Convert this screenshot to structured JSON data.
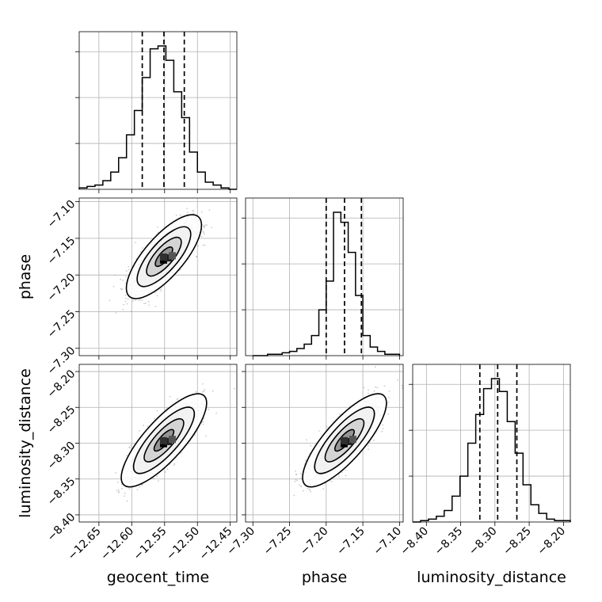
{
  "chart_data": {
    "type": "corner",
    "parameters": [
      {
        "key": "geocent_time",
        "label": "geocent_time",
        "range": [
          -12.68,
          -12.44
        ],
        "ticks": [
          -12.65,
          -12.6,
          -12.55,
          -12.5,
          -12.45
        ],
        "tick_labels": [
          "−12.65",
          "−12.60",
          "−12.55",
          "−12.50",
          "−12.45"
        ],
        "quantiles": [
          -12.584,
          -12.551,
          -12.52
        ],
        "hist_edges": [
          -12.68,
          -12.44
        ],
        "hist": [
          1,
          2,
          3,
          6,
          12,
          22,
          38,
          55,
          78,
          98,
          100,
          90,
          68,
          50,
          26,
          12,
          5,
          3,
          1,
          0
        ]
      },
      {
        "key": "phase",
        "label": "phase",
        "range": [
          -7.31,
          -7.095
        ],
        "ticks": [
          -7.3,
          -7.25,
          -7.2,
          -7.15,
          -7.1
        ],
        "tick_labels": [
          "−7.30",
          "−7.25",
          "−7.20",
          "−7.15",
          "−7.10"
        ],
        "quantiles": [
          -7.2,
          -7.175,
          -7.152
        ],
        "hist_edges": [
          -7.3,
          -7.1
        ],
        "hist": [
          0,
          0,
          1,
          1,
          2,
          3,
          5,
          8,
          14,
          32,
          52,
          100,
          93,
          72,
          42,
          14,
          6,
          3,
          1,
          1
        ]
      },
      {
        "key": "luminosity_distance",
        "label": "luminosity_distance",
        "range": [
          -8.42,
          -8.19
        ],
        "ticks": [
          -8.4,
          -8.35,
          -8.3,
          -8.25,
          -8.2
        ],
        "tick_labels": [
          "−8.40",
          "−8.35",
          "−8.30",
          "−8.25",
          "−8.20"
        ],
        "quantiles": [
          -8.322,
          -8.296,
          -8.268
        ],
        "hist_edges": [
          -8.42,
          -8.19
        ],
        "hist": [
          0,
          1,
          2,
          4,
          8,
          18,
          32,
          55,
          75,
          93,
          100,
          91,
          70,
          48,
          26,
          12,
          6,
          2,
          1,
          1
        ]
      }
    ],
    "panels_2d": [
      {
        "x": "geocent_time",
        "y": "phase",
        "ylim": [
          -7.31,
          -7.095
        ],
        "y_ticks": [
          -7.3,
          -7.25,
          -7.2,
          -7.15,
          -7.1
        ],
        "y_tick_labels": [
          "−7.30",
          "−7.25",
          "−7.20",
          "−7.15",
          "−7.10"
        ],
        "mean": [
          -12.551,
          -7.175
        ],
        "sd": [
          0.022,
          0.022
        ],
        "rho": 0.75
      },
      {
        "x": "geocent_time",
        "y": "luminosity_distance",
        "ylim": [
          -8.41,
          -8.19
        ],
        "y_ticks": [
          -8.4,
          -8.35,
          -8.3,
          -8.25,
          -8.2
        ],
        "y_tick_labels": [
          "−8.40",
          "−8.35",
          "−8.30",
          "−8.25",
          "−8.20"
        ],
        "mean": [
          -12.551,
          -8.296
        ],
        "sd": [
          0.025,
          0.025
        ],
        "rho": 0.8
      },
      {
        "x": "phase",
        "y": "luminosity_distance",
        "ylim": [
          -8.41,
          -8.19
        ],
        "y_ticks": [
          -8.4,
          -8.35,
          -8.3,
          -8.25,
          -8.2
        ],
        "y_tick_labels": [
          "−8.40",
          "−8.35",
          "−8.30",
          "−8.25",
          "−8.20"
        ],
        "mean": [
          -7.175,
          -8.296
        ],
        "sd": [
          0.022,
          0.025
        ],
        "rho": 0.8
      }
    ],
    "grid": true,
    "line_color": "#000000",
    "scatter_color": "#a0a0a0"
  }
}
